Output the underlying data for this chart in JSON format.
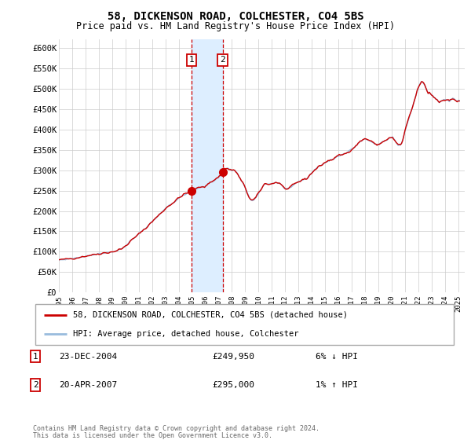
{
  "title": "58, DICKENSON ROAD, COLCHESTER, CO4 5BS",
  "subtitle": "Price paid vs. HM Land Registry's House Price Index (HPI)",
  "legend_label1": "58, DICKENSON ROAD, COLCHESTER, CO4 5BS (detached house)",
  "legend_label2": "HPI: Average price, detached house, Colchester",
  "annotation1_date": "23-DEC-2004",
  "annotation1_price": "£249,950",
  "annotation1_hpi": "6% ↓ HPI",
  "annotation2_date": "20-APR-2007",
  "annotation2_price": "£295,000",
  "annotation2_hpi": "1% ↑ HPI",
  "footer": "Contains HM Land Registry data © Crown copyright and database right 2024.\nThis data is licensed under the Open Government Licence v3.0.",
  "line1_color": "#cc0000",
  "line2_color": "#99bbdd",
  "shade_color": "#ddeeff",
  "vline_color": "#cc0000",
  "ylim": [
    0,
    620000
  ],
  "yticks": [
    0,
    50000,
    100000,
    150000,
    200000,
    250000,
    300000,
    350000,
    400000,
    450000,
    500000,
    550000,
    600000
  ],
  "ytick_labels": [
    "£0",
    "£50K",
    "£100K",
    "£150K",
    "£200K",
    "£250K",
    "£300K",
    "£350K",
    "£400K",
    "£450K",
    "£500K",
    "£550K",
    "£600K"
  ],
  "purchase1_year": 2004.98,
  "purchase2_year": 2007.3,
  "purchase1_price": 249950,
  "purchase2_price": 295000
}
